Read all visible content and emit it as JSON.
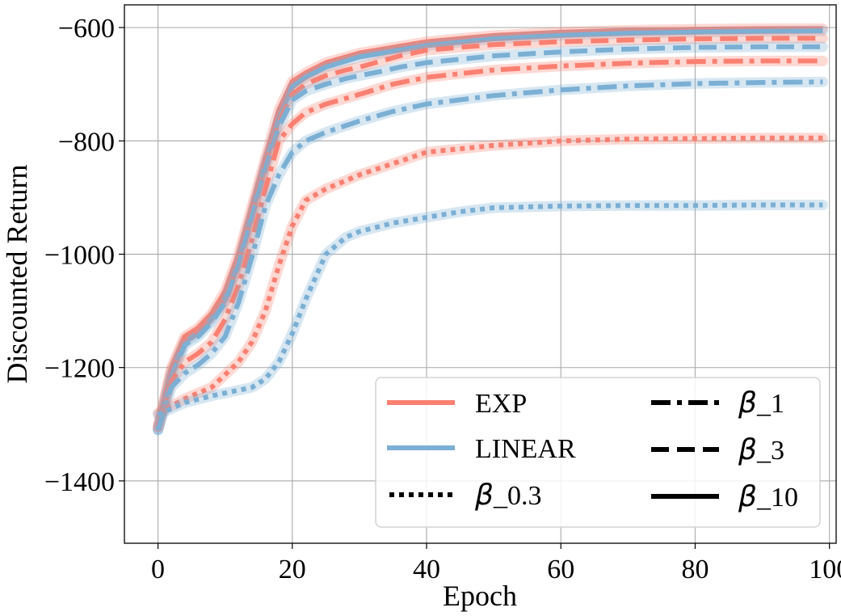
{
  "chart_data": {
    "type": "line",
    "title": "",
    "xlabel": "Epoch",
    "ylabel": "Discounted Return",
    "xlim": [
      -5,
      101
    ],
    "ylim": [
      -1510,
      -560
    ],
    "xticks": [
      0,
      20,
      40,
      60,
      80,
      100
    ],
    "yticks": [
      -600,
      -800,
      -1000,
      -1200,
      -1400
    ],
    "ytick_labels": [
      "−600",
      "−800",
      "−1000",
      "−1200",
      "−1400"
    ],
    "grid": true,
    "colors": {
      "EXP": "#fa8072",
      "LINEAR": "#7bafd4"
    },
    "legend": {
      "placement": "lower-right",
      "method_entries": [
        {
          "label": "EXP",
          "color": "#fa8072"
        },
        {
          "label": "LINEAR",
          "color": "#7bafd4"
        }
      ],
      "beta_entries": [
        {
          "prefix": "β",
          "suffix": "_0.3",
          "style": "dotted"
        },
        {
          "prefix": "β",
          "suffix": "_1",
          "style": "dashdot"
        },
        {
          "prefix": "β",
          "suffix": "_3",
          "style": "dashed"
        },
        {
          "prefix": "β",
          "suffix": "_10",
          "style": "solid"
        }
      ]
    },
    "series": [
      {
        "name": "EXP β_10",
        "method": "EXP",
        "style": "solid",
        "x": [
          0,
          2,
          4,
          6,
          8,
          10,
          12,
          14,
          16,
          18,
          20,
          22,
          25,
          30,
          40,
          50,
          60,
          70,
          80,
          90,
          99
        ],
        "y": [
          -1305,
          -1200,
          -1145,
          -1130,
          -1105,
          -1065,
          -1000,
          -915,
          -830,
          -745,
          -695,
          -680,
          -662,
          -645,
          -625,
          -614,
          -608,
          -605,
          -603,
          -602,
          -602
        ]
      },
      {
        "name": "LINEAR β_10",
        "method": "LINEAR",
        "style": "solid",
        "x": [
          0,
          2,
          4,
          6,
          8,
          10,
          12,
          14,
          16,
          18,
          20,
          22,
          25,
          30,
          40,
          50,
          60,
          70,
          80,
          90,
          99
        ],
        "y": [
          -1310,
          -1210,
          -1155,
          -1140,
          -1115,
          -1080,
          -1015,
          -930,
          -840,
          -760,
          -705,
          -688,
          -670,
          -652,
          -632,
          -620,
          -614,
          -610,
          -608,
          -607,
          -606
        ]
      },
      {
        "name": "EXP β_3",
        "method": "EXP",
        "style": "dashed",
        "x": [
          0,
          2,
          4,
          6,
          8,
          10,
          12,
          14,
          16,
          18,
          20,
          22,
          25,
          28,
          30,
          33,
          36,
          40,
          50,
          60,
          70,
          80,
          90,
          99
        ],
        "y": [
          -1305,
          -1205,
          -1150,
          -1135,
          -1110,
          -1075,
          -1010,
          -925,
          -840,
          -765,
          -718,
          -700,
          -685,
          -675,
          -670,
          -660,
          -650,
          -640,
          -630,
          -625,
          -622,
          -620,
          -619,
          -619
        ]
      },
      {
        "name": "LINEAR β_3",
        "method": "LINEAR",
        "style": "dashed",
        "x": [
          0,
          2,
          4,
          6,
          8,
          10,
          12,
          14,
          16,
          18,
          20,
          22,
          25,
          28,
          30,
          33,
          36,
          40,
          50,
          60,
          70,
          80,
          90,
          99
        ],
        "y": [
          -1310,
          -1215,
          -1160,
          -1145,
          -1120,
          -1085,
          -1020,
          -935,
          -850,
          -775,
          -728,
          -712,
          -700,
          -690,
          -685,
          -678,
          -670,
          -662,
          -650,
          -643,
          -638,
          -635,
          -634,
          -634
        ]
      },
      {
        "name": "EXP β_1",
        "method": "EXP",
        "style": "dashdot",
        "x": [
          0,
          2,
          4,
          6,
          8,
          10,
          12,
          14,
          16,
          18,
          20,
          22,
          25,
          30,
          35,
          40,
          50,
          60,
          70,
          80,
          90,
          99
        ],
        "y": [
          -1305,
          -1225,
          -1190,
          -1175,
          -1155,
          -1115,
          -1055,
          -975,
          -885,
          -800,
          -770,
          -750,
          -735,
          -718,
          -700,
          -688,
          -675,
          -668,
          -663,
          -660,
          -659,
          -659
        ]
      },
      {
        "name": "LINEAR β_1",
        "method": "LINEAR",
        "style": "dashdot",
        "x": [
          0,
          2,
          4,
          6,
          8,
          10,
          12,
          14,
          16,
          18,
          20,
          22,
          25,
          30,
          35,
          40,
          50,
          60,
          70,
          80,
          90,
          99
        ],
        "y": [
          -1310,
          -1235,
          -1210,
          -1195,
          -1175,
          -1145,
          -1085,
          -1005,
          -915,
          -860,
          -820,
          -800,
          -785,
          -765,
          -748,
          -735,
          -720,
          -710,
          -703,
          -699,
          -697,
          -696
        ]
      },
      {
        "name": "EXP β_0.3",
        "method": "EXP",
        "style": "dotted",
        "x": [
          0,
          4,
          8,
          12,
          14,
          16,
          18,
          20,
          22,
          25,
          30,
          35,
          40,
          50,
          60,
          70,
          80,
          90,
          99
        ],
        "y": [
          -1280,
          -1255,
          -1235,
          -1190,
          -1155,
          -1100,
          -1020,
          -950,
          -905,
          -885,
          -860,
          -840,
          -820,
          -808,
          -800,
          -797,
          -796,
          -795,
          -795
        ]
      },
      {
        "name": "LINEAR β_0.3",
        "method": "LINEAR",
        "style": "dotted",
        "x": [
          0,
          4,
          8,
          12,
          14,
          16,
          18,
          20,
          22,
          25,
          28,
          30,
          35,
          40,
          45,
          50,
          60,
          70,
          80,
          90,
          99
        ],
        "y": [
          -1283,
          -1262,
          -1250,
          -1240,
          -1235,
          -1220,
          -1190,
          -1140,
          -1080,
          -1000,
          -970,
          -960,
          -945,
          -935,
          -925,
          -918,
          -915,
          -914,
          -914,
          -913,
          -913
        ]
      }
    ]
  }
}
